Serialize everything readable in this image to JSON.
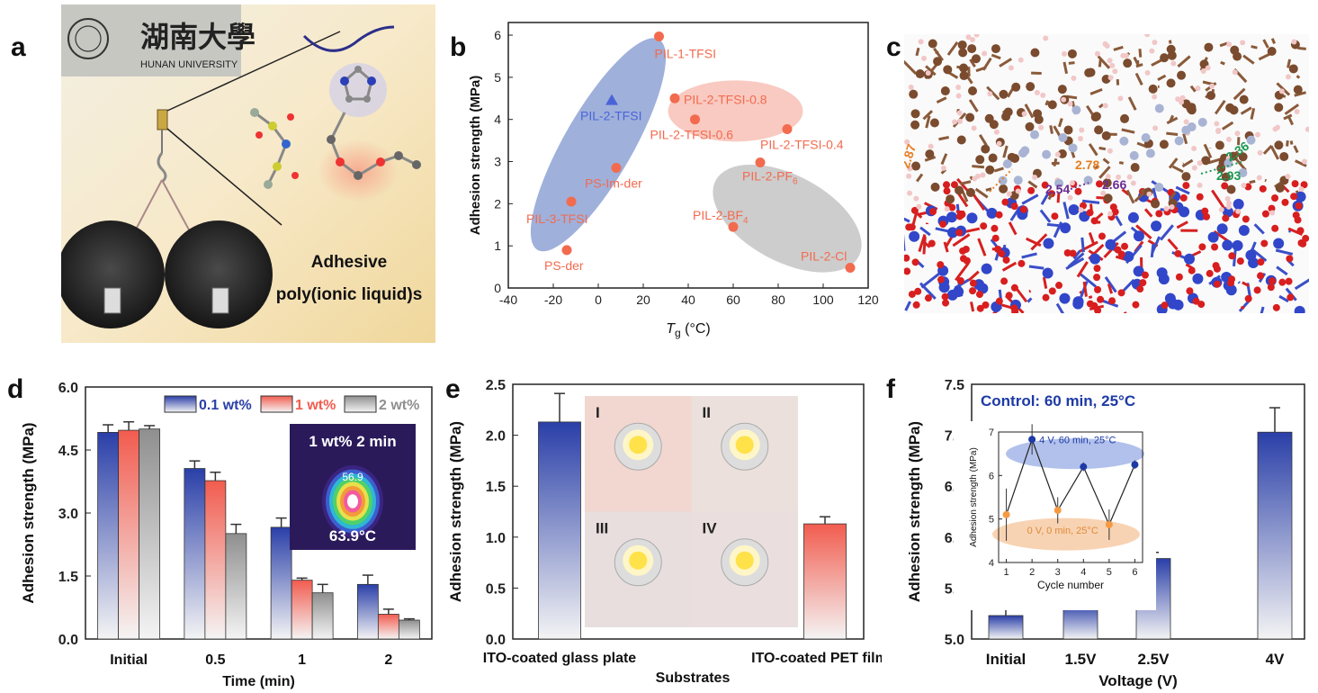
{
  "panels": {
    "a": {
      "letter": "a",
      "university_cn": "湖南大學",
      "university_en": "HUNAN UNIVERSITY",
      "caption_line1": "Adhesive",
      "caption_line2": "poly(ionic liquid)s"
    },
    "b": {
      "letter": "b"
    },
    "c": {
      "letter": "c",
      "distances": [
        {
          "label": "2.87",
          "color": "#e67e22"
        },
        {
          "label": "2.78",
          "color": "#e67e22"
        },
        {
          "label": "2.54",
          "color": "#6a2c91"
        },
        {
          "label": "2.66",
          "color": "#6a2c91"
        },
        {
          "label": "2.36",
          "color": "#1a9850"
        },
        {
          "label": "2.93",
          "color": "#1a9850"
        }
      ]
    },
    "d": {
      "letter": "d",
      "inset_title": "1 wt% 2 min",
      "inset_hot": "56.9",
      "inset_temp": "63.9°C"
    },
    "e": {
      "letter": "e",
      "photo_labels": [
        "I",
        "II",
        "III",
        "IV"
      ]
    },
    "f": {
      "letter": "f",
      "control_note": "Control: 60 min, 25°C"
    }
  },
  "chart_data": [
    {
      "id": "b",
      "type": "scatter",
      "xlabel": "Tg (°C)",
      "xlabel_main": "T",
      "xlabel_sub": "g",
      "xlabel_rest": " (°C)",
      "ylabel": "Adhesion strength (MPa)",
      "xlim": [
        -40,
        120
      ],
      "ylim": [
        0,
        6.3
      ],
      "xticks": [
        -40,
        -20,
        0,
        20,
        40,
        60,
        80,
        100,
        120
      ],
      "yticks": [
        0,
        1,
        2,
        3,
        4,
        5,
        6
      ],
      "points": [
        {
          "name": "PIL-1-TFSI",
          "x": 27,
          "y": 5.97,
          "color": "#f26b4f",
          "marker": "circle"
        },
        {
          "name": "PIL-2-TFSI",
          "x": 6,
          "y": 4.45,
          "color": "#4a64d8",
          "marker": "triangle"
        },
        {
          "name": "PIL-2-TFSI-0.8",
          "x": 34,
          "y": 4.5,
          "color": "#f26b4f",
          "marker": "circle"
        },
        {
          "name": "PIL-2-TFSI-0.6",
          "x": 43,
          "y": 4.0,
          "color": "#f26b4f",
          "marker": "circle"
        },
        {
          "name": "PIL-2-TFSI-0.4",
          "x": 84,
          "y": 3.77,
          "color": "#f26b4f",
          "marker": "circle"
        },
        {
          "name": "PS-Im-der",
          "x": 8,
          "y": 2.85,
          "color": "#f26b4f",
          "marker": "circle"
        },
        {
          "name": "PIL-2-PF6",
          "x": 72,
          "y": 2.98,
          "color": "#f26b4f",
          "marker": "circle"
        },
        {
          "name": "PIL-3-TFSI",
          "x": -12,
          "y": 2.05,
          "color": "#f26b4f",
          "marker": "circle"
        },
        {
          "name": "PIL-2-BF4",
          "x": 60,
          "y": 1.45,
          "color": "#f26b4f",
          "marker": "circle"
        },
        {
          "name": "PS-der",
          "x": -14,
          "y": 0.9,
          "color": "#f26b4f",
          "marker": "circle"
        },
        {
          "name": "PIL-2-Cl",
          "x": 112,
          "y": 0.48,
          "color": "#f26b4f",
          "marker": "circle"
        }
      ],
      "region_colors": [
        "#7f95cf",
        "#f7b3a6",
        "#b8b8b8"
      ]
    },
    {
      "id": "d",
      "type": "bar",
      "xlabel": "Time (min)",
      "ylabel": "Adhesion strength (MPa)",
      "ylim": [
        0,
        6.0
      ],
      "yticks": [
        "0.0",
        "1.5",
        "3.0",
        "4.5",
        "6.0"
      ],
      "categories": [
        "Initial",
        "0.5",
        "1",
        "2"
      ],
      "series": [
        {
          "name": "0.1 wt%",
          "color": "#2a3fa8",
          "values": [
            4.92,
            4.06,
            2.66,
            1.3
          ],
          "errors": [
            0.18,
            0.18,
            0.22,
            0.22
          ]
        },
        {
          "name": "1 wt%",
          "color": "#f25c4f",
          "values": [
            4.97,
            3.77,
            1.4,
            0.59
          ],
          "errors": [
            0.2,
            0.2,
            0.05,
            0.12
          ]
        },
        {
          "name": "2 wt%",
          "color": "#8f8f8f",
          "values": [
            5.0,
            2.51,
            1.1,
            0.45
          ],
          "errors": [
            0.08,
            0.22,
            0.2,
            0.03
          ]
        }
      ]
    },
    {
      "id": "e",
      "type": "bar",
      "xlabel": "Substrates",
      "ylabel": "Adhesion strength (MPa)",
      "ylim": [
        0,
        2.5
      ],
      "yticks": [
        "0.0",
        "0.5",
        "1.0",
        "1.5",
        "2.0",
        "2.5"
      ],
      "categories": [
        "ITO-coated glass plate",
        "ITO-coated PET film"
      ],
      "values": [
        2.13,
        1.13
      ],
      "errors": [
        0.28,
        0.07
      ],
      "colors": [
        "#2a3fa8",
        "#f25c4f"
      ]
    },
    {
      "id": "f",
      "type": "bar",
      "xlabel": "Voltage (V)",
      "ylabel": "Adhesion strength (MPa)",
      "ylim": [
        5.0,
        7.5
      ],
      "yticks": [
        "5.0",
        "5.5",
        "6.0",
        "6.5",
        "7.0",
        "7.5"
      ],
      "categories": [
        "Initial",
        "1.5V",
        "2.5V",
        "4V"
      ],
      "values": [
        5.23,
        5.35,
        5.79,
        7.03
      ],
      "errors": [
        0.21,
        0.04,
        0.06,
        0.24
      ],
      "color": "#2a3fa8"
    },
    {
      "id": "f-inset",
      "type": "line",
      "xlabel": "Cycle number",
      "ylabel": "Adhesion strength (MPa)",
      "xlim": [
        0.7,
        6.3
      ],
      "ylim": [
        4,
        7
      ],
      "xticks": [
        1,
        2,
        3,
        4,
        5,
        6
      ],
      "yticks": [
        4,
        5,
        6,
        7
      ],
      "x": [
        1,
        2,
        3,
        4,
        5,
        6
      ],
      "y": [
        5.1,
        6.83,
        5.2,
        6.2,
        4.87,
        6.25
      ],
      "errors": [
        0.6,
        0.35,
        0.3,
        0.1,
        0.35,
        0.1
      ],
      "point_colors": [
        "#f59a42",
        "#1d3aa6",
        "#f59a42",
        "#1d3aa6",
        "#f59a42",
        "#1d3aa6"
      ],
      "regions": [
        {
          "label": "4 V, 60 min, 25°C",
          "color": "#9fb1e6"
        },
        {
          "label": "0 V, 0 min, 25°C",
          "color": "#f6c8a0"
        }
      ]
    }
  ]
}
